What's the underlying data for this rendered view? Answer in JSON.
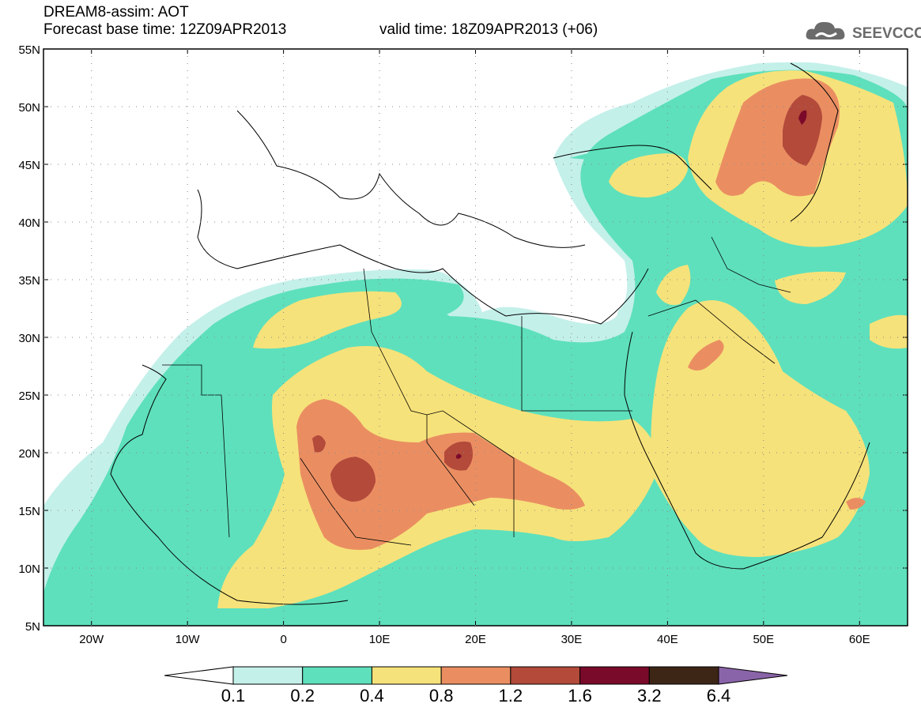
{
  "header": {
    "title": "DREAM8-assim: AOT",
    "base_time": "Forecast base time: 12Z09APR2013",
    "valid_time": "valid time: 18Z09APR2013 (+06)"
  },
  "logo": {
    "text": "SEEVCCC",
    "icon": "cloud-icon"
  },
  "map": {
    "lat_labels": [
      "55N",
      "50N",
      "45N",
      "40N",
      "35N",
      "30N",
      "25N",
      "20N",
      "15N",
      "10N",
      "5N"
    ],
    "lon_labels": [
      "20W",
      "10W",
      "0",
      "10E",
      "20E",
      "30E",
      "40E",
      "50E",
      "60E"
    ],
    "lat_range": [
      5,
      55
    ],
    "lon_range": [
      -25,
      65
    ]
  },
  "colorbar": {
    "labels": [
      "0.1",
      "0.2",
      "0.4",
      "0.8",
      "1.2",
      "1.6",
      "3.2",
      "6.4"
    ],
    "colors": [
      "#ffffff",
      "#c4f0ea",
      "#5ee0bc",
      "#f6e27a",
      "#ea8e62",
      "#b34a3a",
      "#7a0a2a",
      "#3d2616",
      "#8a64a8"
    ]
  }
}
